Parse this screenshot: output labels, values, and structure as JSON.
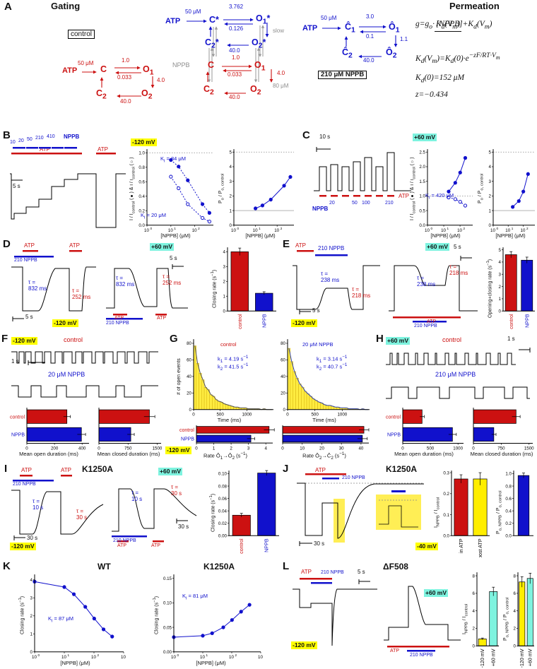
{
  "panels": {
    "a": "A",
    "b": "B",
    "c": "C",
    "d": "D",
    "e": "E",
    "f": "F",
    "g": "G",
    "h": "H",
    "i": "I",
    "j": "J",
    "k": "K",
    "l": "L"
  },
  "colors": {
    "red": "#cc1111",
    "blue": "#1111cc",
    "yellow": "#ffff00",
    "cyan": "#7ef3df",
    "gray": "#8d8d8d"
  },
  "panelA": {
    "gating_title": "Gating",
    "permeation_title": "Permeation",
    "control_box": "control",
    "nppb_box": "210 μM NPPB",
    "ctrl": {
      "atp": "ATP",
      "k_atp": "50 μM",
      "C": "C",
      "O1": "O<sub>1</sub>",
      "C2": "C<sub>2</sub>",
      "O2": "O<sub>2</sub>",
      "k_co": "1.0",
      "k_oc": "0.033",
      "k_o1o2": "4.0",
      "k_o2c2": "40.0"
    },
    "star": {
      "atp": "ATP",
      "k_atp": "50 μM",
      "C": "C*",
      "O1": "O<sub>1</sub>*",
      "C2": "C<sub>2</sub>*",
      "O2": "O<sub>2</sub>*",
      "k_co": "3.762",
      "k_oc": "0.126",
      "k_o2c2": "40.0",
      "nppb": "NPPB",
      "slow": "slow",
      "k_nppb": "80 μM",
      "sub_C": "C",
      "sub_O1": "O<sub>1</sub>",
      "sub_C2": "C<sub>2</sub>",
      "sub_O2": "O<sub>2</sub>",
      "sub_k_co": "1.0",
      "sub_k_oc": "0.033",
      "sub_k_o1o2": "4.0",
      "sub_k_o2c2": "40.0"
    },
    "hat": {
      "atp": "ATP",
      "k_atp": "50 μM",
      "C1": "Ĉ<sub>1</sub>",
      "O1": "Ô<sub>1</sub>",
      "C2": "Ĉ<sub>2</sub>",
      "O2": "Ô<sub>2</sub>",
      "k_co": "3.0",
      "k_oc": "0.1",
      "k_o1o2": "1.1",
      "k_o2c2": "40.0"
    },
    "eq_g_lhs": "g=g<sub>o</sub>·",
    "eq_g_num": "K<sub>d</sub>(V<sub>m</sub>)",
    "eq_g_den": "[NPPB]+K<sub>d</sub>(V<sub>m</sub>)",
    "eq_kd": "K<sub>d</sub>(V<sub>m</sub>)=K<sub>d</sub>(0)·e<sup>−zF/RT·V<sub>m</sub></sup>",
    "eq_kd0": "K<sub>d</sub>(0)=152 μM",
    "eq_z": "z=−0.434"
  },
  "panelB": {
    "doses": [
      "10",
      "20",
      "50",
      "210",
      "410"
    ],
    "nppb": "NPPB",
    "atp": "ATP",
    "scale": "5 s",
    "voltage": "-120 mV"
  },
  "panelC": {
    "scale": "10 s",
    "voltage": "+60 mV",
    "doses": [
      "20",
      "50",
      "100",
      "210"
    ],
    "nppb": "NPPB",
    "atp": "ATP"
  },
  "panelD": {
    "atp": "ATP",
    "nppb": "210 NPPB",
    "tau_nppb": "τ =<br>832 ms",
    "tau_ctrl": "τ =<br>252 ms",
    "scale": "5 s",
    "v_neg": "-120 mV",
    "v_pos": "+60 mV"
  },
  "panelE": {
    "atp": "ATP",
    "nppb": "210 NPPB",
    "tau_nppb": "τ =<br>238 ms",
    "tau_ctrl": "τ =<br>218 ms",
    "scale": "5 s",
    "v_neg": "-120 mV",
    "v_pos": "+60 mV"
  },
  "panelF": {
    "voltage": "-120 mV",
    "control": "control",
    "nppb": "20 μM NPPB",
    "scale": "1 s"
  },
  "panelG": {
    "voltage": "-120 mV"
  },
  "panelH": {
    "voltage": "+60 mV",
    "control": "control",
    "nppb": "210 μM NPPB",
    "scale": "1 s"
  },
  "panelI": {
    "title": "K1250A",
    "atp": "ATP",
    "nppb": "210 NPPB",
    "tau_nppb": "τ =<br>10 s",
    "tau_ctrl": "τ =<br>30 s",
    "scale": "30 s",
    "v_neg": "-120 mV",
    "v_pos": "+60 mV"
  },
  "panelJ": {
    "title": "K1250A",
    "atp": "ATP",
    "nppb": "210 NPPB",
    "scale": "30 s",
    "voltage": "-40 mV"
  },
  "panelK": {
    "title_wt": "WT",
    "title_mut": "K1250A"
  },
  "panelL": {
    "title": "ΔF508",
    "atp": "ATP",
    "nppb": "210 NPPB",
    "scale": "5 s",
    "v_neg": "-120 mV",
    "v_pos": "+60 mV"
  },
  "chart_data": [
    {
      "id": "B-fractional-current",
      "type": "scatter",
      "xlog": true,
      "xmin": 1,
      "xmax": 600,
      "xticks_exp": [
        0,
        1,
        2
      ],
      "ymin": 0,
      "ymax": 1.05,
      "yticks": [
        0,
        0.2,
        0.4,
        0.6,
        0.8,
        1
      ],
      "ydec": 1,
      "ylabel": "I / I<sub>control</sub> (●) & i / i<sub>control</sub> (○)",
      "xlabel": "[NPPB] (μM)",
      "annotations": [
        "K<sub>i</sub> = 84 μM",
        "K<sub>i</sub> = 20 μM"
      ],
      "reflines": [
        {
          "y": 1,
          "dash": true
        }
      ],
      "series": [
        {
          "name": "I/I_control",
          "marker": "filled",
          "line": "dashed",
          "color": "#1111cc",
          "x": [
            10,
            21,
            51,
            210,
            410
          ],
          "y": [
            0.9,
            0.81,
            0.62,
            0.29,
            0.17
          ]
        },
        {
          "name": "i/i_control",
          "marker": "open",
          "line": "dashed",
          "color": "#1111cc",
          "x": [
            10,
            21,
            51,
            210,
            410
          ],
          "y": [
            0.67,
            0.51,
            0.29,
            0.1,
            0.05
          ]
        }
      ]
    },
    {
      "id": "B-Po-ratio",
      "type": "scatter",
      "xlog": true,
      "xmin": 1,
      "xmax": 600,
      "xticks_exp": [
        0,
        1,
        2
      ],
      "ymin": 0,
      "ymax": 5.2,
      "yticks": [
        0,
        1,
        2,
        3,
        4,
        5
      ],
      "ydec": 0,
      "ylabel": "P<sub>o</sub> / P<sub>o, control</sub>",
      "xlabel": "[NPPB] (μM)",
      "reflines": [
        {
          "y": 5,
          "dash": true
        },
        {
          "y": 1,
          "dash": false
        }
      ],
      "series": [
        {
          "name": "Po/Po_control",
          "marker": "filled",
          "line": "solid",
          "color": "#1111cc",
          "x": [
            10,
            21,
            51,
            210,
            410
          ],
          "y": [
            1.15,
            1.35,
            1.75,
            2.7,
            3.3
          ]
        }
      ]
    },
    {
      "id": "C-fractional-current",
      "type": "scatter",
      "xlog": true,
      "xmin": 1,
      "xmax": 600,
      "xticks_exp": [
        0,
        1,
        2
      ],
      "ymin": 0,
      "ymax": 2.6,
      "yticks": [
        0,
        0.5,
        1,
        1.5,
        2,
        2.5
      ],
      "ydec": 1,
      "ylabel": "I / I<sub>control</sub> (●) & i / i<sub>control</sub> (○)",
      "xlabel": "[NPPB] (μM)",
      "annotations": [
        "K<sub>i</sub> = 420 μM"
      ],
      "reflines": [
        {
          "y": 1,
          "dash": true
        }
      ],
      "series": [
        {
          "name": "I/I_control",
          "marker": "filled",
          "line": "solid",
          "color": "#1111cc",
          "x": [
            20,
            51,
            102,
            210
          ],
          "y": [
            1.15,
            1.45,
            1.8,
            2.3
          ]
        },
        {
          "name": "i/i_control",
          "marker": "open",
          "line": "dashed",
          "color": "#1111cc",
          "x": [
            20,
            51,
            102,
            210
          ],
          "y": [
            0.95,
            0.89,
            0.8,
            0.67
          ]
        }
      ]
    },
    {
      "id": "C-Po-ratio",
      "type": "scatter",
      "xlog": true,
      "xmin": 1,
      "xmax": 600,
      "xticks_exp": [
        0,
        1,
        2
      ],
      "ymin": 0,
      "ymax": 5.2,
      "yticks": [
        0,
        1,
        2,
        3,
        4,
        5
      ],
      "ydec": 0,
      "ylabel": "P<sub>o</sub> / P<sub>o, control</sub>",
      "xlabel": "[NPPB] (μM)",
      "reflines": [
        {
          "y": 5,
          "dash": true
        },
        {
          "y": 1,
          "dash": false
        }
      ],
      "series": [
        {
          "name": "Po/Po_control",
          "marker": "filled",
          "line": "solid",
          "color": "#1111cc",
          "x": [
            20,
            51,
            102,
            210
          ],
          "y": [
            1.25,
            1.65,
            2.3,
            3.5
          ]
        }
      ]
    },
    {
      "id": "D-closing-rate",
      "type": "vbar",
      "ymin": 0,
      "ymax": 4.3,
      "yticks": [
        0,
        1,
        2,
        3,
        4
      ],
      "ydec": 0,
      "ylabel": "Closing rate (s<sup>−1</sup>)",
      "bars": [
        {
          "label": "control",
          "value": 4.0,
          "err": 0.25,
          "color": "#cc1111",
          "lcolor": "#cc1111"
        },
        {
          "label": "NPPB",
          "value": 1.2,
          "err": 0.1,
          "color": "#1111cc",
          "lcolor": "#1111cc"
        }
      ]
    },
    {
      "id": "E-opening-closing-rate",
      "type": "vbar",
      "ymin": 0,
      "ymax": 5.2,
      "yticks": [
        0,
        1,
        2,
        3,
        4,
        5
      ],
      "ydec": 0,
      "ylabel": "Opening+closing rate (s<sup>−1</sup>)",
      "bars": [
        {
          "label": "control",
          "value": 4.6,
          "err": 0.25,
          "color": "#cc1111",
          "lcolor": "#cc1111"
        },
        {
          "label": "NPPB",
          "value": 4.15,
          "err": 0.25,
          "color": "#1111cc",
          "lcolor": "#1111cc"
        }
      ]
    },
    {
      "id": "F-mean-open",
      "type": "hbar",
      "xmin": 0,
      "xmax": 450,
      "xticks": [
        0,
        200,
        400
      ],
      "xlabel": "Mean open duration (ms)",
      "rowlabels": true,
      "rows": [
        {
          "label": "control",
          "value": 290,
          "err": 25,
          "color": "#cc1111"
        },
        {
          "label": "NPPB",
          "value": 395,
          "err": 30,
          "color": "#1111cc"
        }
      ]
    },
    {
      "id": "F-mean-closed",
      "type": "hbar",
      "xmin": 0,
      "xmax": 1600,
      "xticks": [
        0,
        750,
        1500
      ],
      "xlabel": "Mean closed duration (ms)",
      "rowlabels": false,
      "rows": [
        {
          "label": "control",
          "value": 1300,
          "err": 140,
          "color": "#cc1111"
        },
        {
          "label": "NPPB",
          "value": 820,
          "err": 90,
          "color": "#1111cc"
        }
      ]
    },
    {
      "id": "G-hist-control",
      "type": "hist",
      "xmin": 0,
      "xmax": 1500,
      "xticks": [
        0,
        500,
        1000
      ],
      "ymin": 0,
      "ymax": 85,
      "yticks": [
        0,
        20,
        40,
        60,
        80
      ],
      "ydec": 0,
      "ylabel": "# of open events",
      "xlabel": "Time (ms)",
      "title": "control",
      "binw_ms": 50,
      "fill": "#ffec40",
      "fitcolor": "#555",
      "k1": "k<sub>1</sub> = 4.19 s<sup>−1</sup>",
      "k2": "k<sub>2</sub> = 41.5 s<sup>−1</sup>",
      "bins": [
        77,
        56,
        44,
        36,
        27,
        24,
        18,
        16,
        12,
        10,
        9,
        7,
        6,
        5,
        4,
        3,
        3,
        2,
        2,
        2,
        1,
        1,
        1,
        1,
        1,
        0,
        1,
        0,
        0,
        0
      ]
    },
    {
      "id": "G-hist-nppb",
      "type": "hist",
      "xmin": 0,
      "xmax": 1500,
      "xticks": [
        0,
        500,
        1000
      ],
      "ymin": 0,
      "ymax": 85,
      "yticks": [
        0,
        20,
        40,
        60,
        80
      ],
      "ydec": 0,
      "ylabel": "",
      "xlabel": "Time (ms)",
      "title": "20 μM NPPB",
      "binw_ms": 50,
      "fill": "#ffec40",
      "fitcolor": "#3344aa",
      "k1": "k<sub>1</sub> = 3.14 s<sup>−1</sup>",
      "k2": "k<sub>2</sub> = 40.7 s<sup>−1</sup>",
      "bins": [
        74,
        58,
        46,
        38,
        31,
        27,
        22,
        19,
        16,
        13,
        11,
        9,
        8,
        6,
        5,
        5,
        4,
        3,
        3,
        2,
        2,
        2,
        1,
        1,
        1,
        1,
        0,
        1,
        0,
        0
      ]
    },
    {
      "id": "G-rate-O1-O2",
      "type": "hbar",
      "xmin": 0,
      "xmax": 4.4,
      "xticks": [
        0,
        1,
        2,
        3,
        4
      ],
      "xlabel": "Rate Ô<sub>1</sub>→Ô<sub>2</sub> (s<sup>−1</sup>)",
      "rowlabels": true,
      "rows": [
        {
          "label": "control",
          "value": 4.19,
          "err": 0.3,
          "color": "#cc1111"
        },
        {
          "label": "NPPB",
          "value": 3.14,
          "err": 0.22,
          "color": "#1111cc"
        }
      ]
    },
    {
      "id": "G-rate-O2-C2",
      "type": "hbar",
      "xmin": 0,
      "xmax": 44,
      "xticks": [
        0,
        10,
        20,
        30,
        40
      ],
      "xlabel": "Rate Ô<sub>2</sub>→Ĉ<sub>2</sub> (s<sup>−1</sup>)",
      "rowlabels": false,
      "rows": [
        {
          "label": "control",
          "value": 41.5,
          "err": 2.5,
          "color": "#cc1111"
        },
        {
          "label": "NPPB",
          "value": 40.7,
          "err": 2.5,
          "color": "#1111cc"
        }
      ]
    },
    {
      "id": "H-mean-open",
      "type": "hbar",
      "xmin": 0,
      "xmax": 1100,
      "xticks": [
        0,
        500,
        1000
      ],
      "xlabel": "Mean open duration (ms)",
      "rowlabels": true,
      "rows": [
        {
          "label": "control",
          "value": 350,
          "err": 40,
          "color": "#cc1111"
        },
        {
          "label": "NPPB",
          "value": 900,
          "err": 70,
          "color": "#1111cc"
        }
      ]
    },
    {
      "id": "H-mean-closed",
      "type": "hbar",
      "xmin": 0,
      "xmax": 1600,
      "xticks": [
        0,
        750,
        1500
      ],
      "xlabel": "Mean closed duration (ms)",
      "rowlabels": false,
      "rows": [
        {
          "label": "control",
          "value": 1150,
          "err": 110,
          "color": "#cc1111"
        },
        {
          "label": "NPPB",
          "value": 550,
          "err": 60,
          "color": "#1111cc"
        }
      ]
    },
    {
      "id": "I-closing-rate",
      "type": "vbar",
      "ymin": 0,
      "ymax": 0.105,
      "yticks": [
        0,
        0.02,
        0.04,
        0.06,
        0.08,
        0.1
      ],
      "ydec": 2,
      "ylabel": "Closing rate (s<sup>−1</sup>)",
      "bars": [
        {
          "label": "control",
          "value": 0.033,
          "err": 0.003,
          "color": "#cc1111",
          "lcolor": "#cc1111"
        },
        {
          "label": "NPPB",
          "value": 0.101,
          "err": 0.004,
          "color": "#1111cc",
          "lcolor": "#1111cc"
        }
      ]
    },
    {
      "id": "J-current-ratio",
      "type": "vbar",
      "ymin": 0,
      "ymax": 0.31,
      "yticks": [
        0,
        0.1,
        0.2,
        0.3
      ],
      "ydec": 1,
      "ylabel": "I<sub>NPPB</sub> / I<sub>control</sub>",
      "bars": [
        {
          "label": "in ATP",
          "value": 0.27,
          "err": 0.02,
          "color": "#cc1111",
          "lcolor": "#000000"
        },
        {
          "label": "post ATP",
          "value": 0.27,
          "err": 0.03,
          "color": "#ffee00",
          "lcolor": "#000000"
        }
      ]
    },
    {
      "id": "J-Po-ratio",
      "type": "vbar",
      "ymin": 0,
      "ymax": 1.05,
      "yticks": [
        0,
        0.2,
        0.4,
        0.6,
        0.8,
        1
      ],
      "ydec": 1,
      "ylabel": "P<sub>o, NPPB</sub> / P<sub>o, control</sub>",
      "bars": [
        {
          "label": "",
          "value": 0.97,
          "err": 0.04,
          "color": "#1111cc"
        }
      ]
    },
    {
      "id": "K-WT",
      "type": "scatter",
      "xlog": true,
      "xmin": 1,
      "xmax": 1000,
      "xticks_exp": [
        0,
        1,
        2,
        3
      ],
      "ymin": 0,
      "ymax": 4.3,
      "yticks": [
        0,
        1,
        2,
        3,
        4
      ],
      "ydec": 0,
      "ylabel": "Closing rate (s<sup>−1</sup>)",
      "xlabel": "[NPPB] (μM)",
      "annotations": [
        "K<sub>i</sub> = 87 μM"
      ],
      "series": [
        {
          "name": "closing rate",
          "marker": "filled",
          "line": "solid",
          "color": "#1111cc",
          "x": [
            1,
            10,
            21,
            51,
            102,
            210,
            410
          ],
          "y": [
            3.9,
            3.6,
            3.2,
            2.5,
            1.85,
            1.25,
            0.85
          ]
        }
      ]
    },
    {
      "id": "K-K1250A",
      "type": "scatter",
      "xlog": true,
      "xmin": 1,
      "xmax": 1000,
      "xticks_exp": [
        0,
        1,
        2,
        3
      ],
      "ymin": 0,
      "ymax": 0.158,
      "yticks": [
        0,
        0.05,
        0.1,
        0.15
      ],
      "ydec": 2,
      "ylabel": "Closing rate (s<sup>−1</sup>)",
      "xlabel": "[NPPB] (μM)",
      "annotations": [
        "K<sub>i</sub> = 81 μM"
      ],
      "series": [
        {
          "name": "closing rate",
          "marker": "filled",
          "line": "solid",
          "color": "#1111cc",
          "x": [
            1,
            10,
            21,
            51,
            102,
            210,
            410
          ],
          "y": [
            0.03,
            0.033,
            0.038,
            0.05,
            0.065,
            0.082,
            0.096
          ]
        }
      ]
    },
    {
      "id": "L-current-ratio",
      "type": "vbar",
      "ymin": 0,
      "ymax": 8.4,
      "yticks": [
        0,
        2,
        4,
        6,
        8
      ],
      "ydec": 0,
      "ylabel": "I<sub>NPPB</sub> / I<sub>control</sub>",
      "bars": [
        {
          "label": "-120 mV",
          "value": 0.8,
          "err": 0.1,
          "color": "#ffee00",
          "lcolor": "#000000"
        },
        {
          "label": "+60 mV",
          "value": 6.2,
          "err": 0.5,
          "color": "#7ef3df",
          "lcolor": "#000000"
        }
      ]
    },
    {
      "id": "L-Po-ratio",
      "type": "vbar",
      "ymin": 0,
      "ymax": 8.4,
      "yticks": [
        0,
        2,
        4,
        6,
        8
      ],
      "ydec": 0,
      "ylabel": "P<sub>o, NPPB</sub> / P<sub>o, control</sub>",
      "bars": [
        {
          "label": "-120 mV",
          "value": 7.3,
          "err": 0.6,
          "color": "#ffee00",
          "lcolor": "#000000"
        },
        {
          "label": "+60 mV",
          "value": 7.7,
          "err": 0.6,
          "color": "#7ef3df",
          "lcolor": "#000000"
        }
      ]
    }
  ]
}
